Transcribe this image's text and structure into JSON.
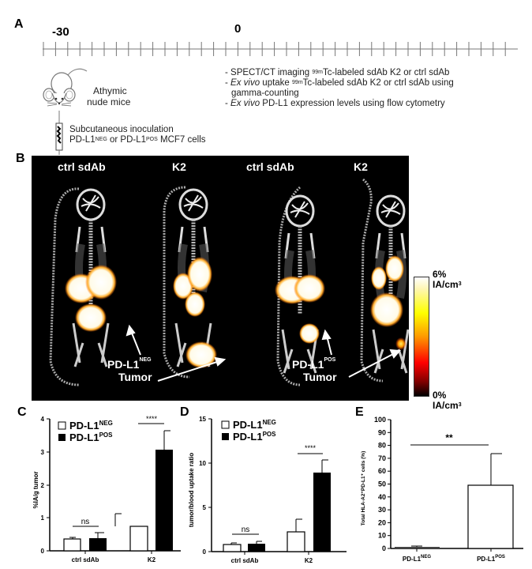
{
  "panel_a": {
    "letter": "A",
    "timeline": {
      "label_start": "-30",
      "label_zero": "0",
      "tick_count": 39
    },
    "mouse_label_line1": "Athymic",
    "mouse_label_line2": "nude mice",
    "inoculation_line1": "Subcutaneous inoculation",
    "inoculation_line2_a": "PD-L1",
    "inoculation_line2_sup1": "NEG",
    "inoculation_line2_b": " or PD-L1",
    "inoculation_line2_sup2": "POS",
    "inoculation_line2_c": " MCF7 cells",
    "steps": [
      {
        "prefix": "- SPECT/CT imaging ",
        "sup": "99m",
        "text": "Tc-labeled sdAb K2 or ctrl sdAb"
      },
      {
        "prefix": "- ",
        "italic": "Ex vivo",
        "mid": " uptake ",
        "sup": "99m",
        "text": "Tc-labeled sdAb K2 or ctrl sdAb using"
      },
      {
        "text": "  gamma-counting"
      },
      {
        "prefix": "- ",
        "italic": "Ex vivo",
        "text": " PD-L1 expression levels using flow cytometry"
      }
    ]
  },
  "panel_b": {
    "letter": "B",
    "column_labels": [
      "ctrl sdAb",
      "K2",
      "ctrl sdAb",
      "K2"
    ],
    "annotation_neg": {
      "main": "PD-L1",
      "sup": "NEG",
      "line2": "Tumor"
    },
    "annotation_pos": {
      "main": "PD-L1",
      "sup": "POS",
      "line2": "Tumor"
    },
    "colorbar": {
      "max_label": "6%",
      "min_label": "0%",
      "unit": "IA/cm",
      "unit_sup": "3",
      "colors": [
        "#ffffff",
        "#ffff00",
        "#ff9900",
        "#ff0000",
        "#800000",
        "#000000"
      ]
    }
  },
  "legend": {
    "neg": "PD-L1",
    "neg_sup": "NEG",
    "pos": "PD-L1",
    "pos_sup": "POS"
  },
  "chart_data": [
    {
      "panel": "C",
      "type": "bar",
      "title": "",
      "xlabel": "",
      "ylabel": "%IA/g tumor",
      "ylim": [
        0,
        4
      ],
      "yticks": [
        0,
        1,
        2,
        3,
        4
      ],
      "categories": [
        "ctrl sdAb",
        "K2"
      ],
      "series": [
        {
          "name": "PD-L1 NEG",
          "color": "#ffffff",
          "values": [
            0.35,
            0.73
          ],
          "errors": [
            0.04,
            0.38
          ]
        },
        {
          "name": "PD-L1 POS",
          "color": "#000000",
          "values": [
            0.38,
            3.07
          ],
          "errors": [
            0.16,
            0.58
          ]
        }
      ],
      "annotations": [
        {
          "group": "ctrl sdAb",
          "text": "ns"
        },
        {
          "group": "K2",
          "text": "****"
        }
      ],
      "legend_position": "top-left"
    },
    {
      "panel": "D",
      "type": "bar",
      "title": "",
      "xlabel": "",
      "ylabel": "tumor/blood uptake ratio",
      "ylim": [
        0,
        15
      ],
      "yticks": [
        0,
        5,
        10,
        15
      ],
      "categories": [
        "ctrl sdAb",
        "K2"
      ],
      "series": [
        {
          "name": "PD-L1 NEG",
          "color": "#ffffff",
          "values": [
            0.8,
            2.2
          ],
          "errors": [
            0.15,
            1.4
          ]
        },
        {
          "name": "PD-L1 POS",
          "color": "#000000",
          "values": [
            0.9,
            8.9
          ],
          "errors": [
            0.3,
            1.4
          ]
        }
      ],
      "annotations": [
        {
          "group": "ctrl sdAb",
          "text": "ns"
        },
        {
          "group": "K2",
          "text": "****"
        }
      ],
      "legend_position": "top-left"
    },
    {
      "panel": "E",
      "type": "bar",
      "title": "",
      "xlabel": "",
      "ylabel": "Total HLA-A2+PD-L1+ cells (%)",
      "ylim": [
        0,
        100
      ],
      "yticks": [
        0,
        10,
        20,
        30,
        40,
        50,
        60,
        70,
        80,
        90,
        100
      ],
      "categories": [
        "PD-L1 NEG",
        "PD-L1 POS"
      ],
      "values": [
        1.2,
        49
      ],
      "errors": [
        0.3,
        24.5
      ],
      "annotations": [
        {
          "span": [
            "PD-L1 NEG",
            "PD-L1 POS"
          ],
          "text": "**",
          "y": 80
        }
      ]
    }
  ],
  "panel_c": {
    "letter": "C",
    "ylabel": "%IA/g tumor",
    "ticks": [
      "0",
      "1",
      "2",
      "3",
      "4"
    ],
    "cats": [
      "ctrl sdAb",
      "K2"
    ],
    "sig1": "ns",
    "sig2": "****"
  },
  "panel_d": {
    "letter": "D",
    "ylabel": "tumor/blood uptake ratio",
    "ticks": [
      "0",
      "5",
      "10",
      "15"
    ],
    "cats": [
      "ctrl sdAb",
      "K2"
    ],
    "sig1": "ns",
    "sig2": "****"
  },
  "panel_e": {
    "letter": "E",
    "ylabel": "Total HLA-A2⁺PD-L1⁺ cells (%)",
    "ticks": [
      "0",
      "10",
      "20",
      "30",
      "40",
      "50",
      "60",
      "70",
      "80",
      "90",
      "100"
    ],
    "cat1": "PD-L1",
    "cat1_sup": "NEG",
    "cat2": "PD-L1",
    "cat2_sup": "POS",
    "sig": "**"
  }
}
